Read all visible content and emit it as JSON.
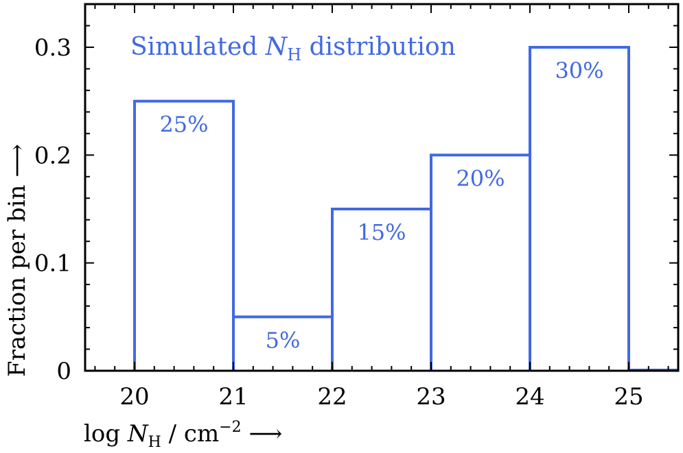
{
  "chart_data": {
    "type": "bar",
    "title": {
      "prefix": "Simulated ",
      "symbol": "N",
      "symbol_sub": "H",
      "suffix": " distribution"
    },
    "xlabel": {
      "prefix": "log ",
      "symbol": "N",
      "symbol_sub": "H",
      "unit": " / cm",
      "unit_sup": "−2",
      "arrow": " ⟶"
    },
    "ylabel": "Fraction per bin ⟶",
    "bin_edges": [
      20,
      21,
      22,
      23,
      24,
      25
    ],
    "values": [
      0.25,
      0.05,
      0.15,
      0.2,
      0.3
    ],
    "data_labels": [
      "25%",
      "5%",
      "15%",
      "20%",
      "30%"
    ],
    "xlim": [
      19.5,
      25.5
    ],
    "ylim": [
      0,
      0.34
    ],
    "x_ticks": [
      20,
      21,
      22,
      23,
      24,
      25
    ],
    "x_tick_labels": [
      "20",
      "21",
      "22",
      "23",
      "24",
      "25"
    ],
    "y_ticks": [
      0,
      0.1,
      0.2,
      0.3
    ],
    "y_tick_labels": [
      "0",
      "0.1",
      "0.2",
      "0.3"
    ],
    "color": "#4169E1",
    "grid": false
  }
}
